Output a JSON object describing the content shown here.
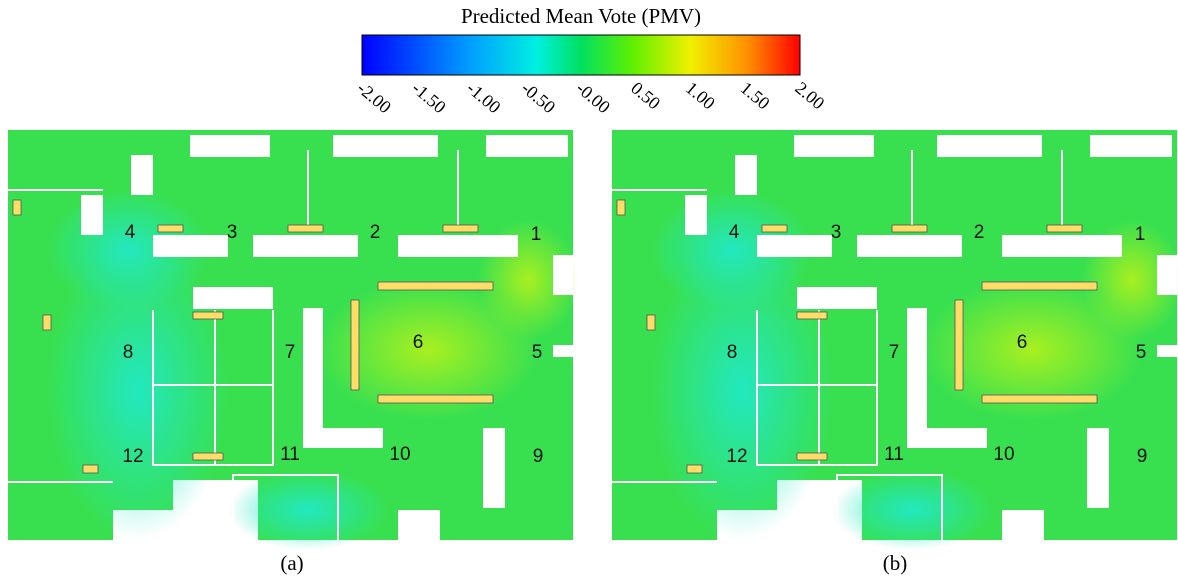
{
  "colorbar": {
    "title": "Predicted Mean Vote (PMV)",
    "ticks": [
      "-2.00",
      "-1.50",
      "-1.00",
      "-0.50",
      "-0.00",
      "0.50",
      "1.00",
      "1.50",
      "2.00"
    ]
  },
  "panels": [
    {
      "label": "(a)",
      "rooms": [
        "1",
        "2",
        "3",
        "4",
        "5",
        "6",
        "7",
        "8",
        "9",
        "10",
        "11",
        "12"
      ]
    },
    {
      "label": "(b)",
      "rooms": [
        "1",
        "2",
        "3",
        "4",
        "5",
        "6",
        "7",
        "8",
        "9",
        "10",
        "11",
        "12"
      ]
    }
  ]
}
